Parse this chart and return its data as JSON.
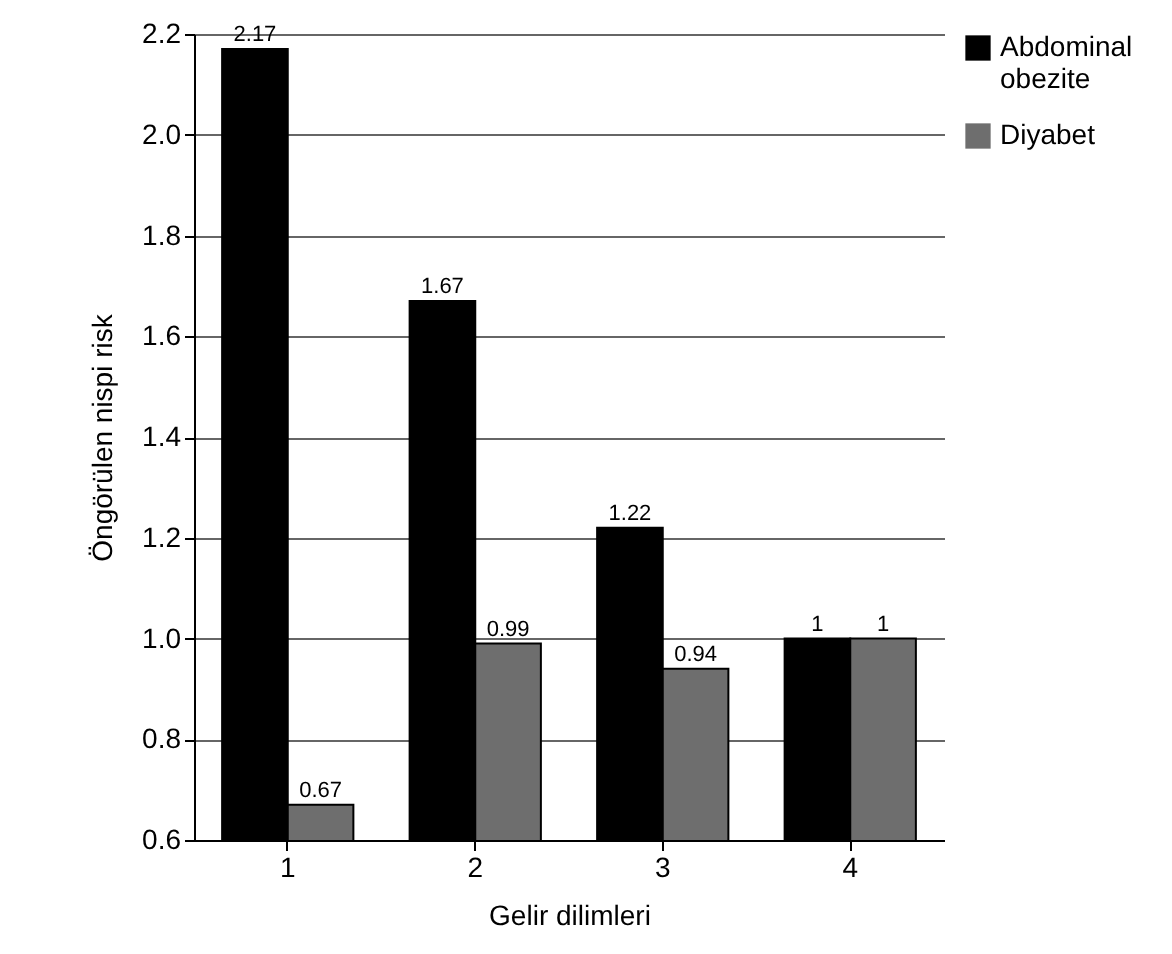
{
  "chart_data": {
    "type": "bar",
    "xlabel": "Gelir dilimleri",
    "ylabel": "Öngörülen nispi risk",
    "categories": [
      "1",
      "2",
      "3",
      "4"
    ],
    "series": [
      {
        "name": "Abdominal obezite",
        "color": "#000000",
        "values": [
          2.17,
          1.67,
          1.22,
          1
        ],
        "value_labels": [
          "2.17",
          "1.67",
          "1.22",
          "1"
        ]
      },
      {
        "name": "Diyabet",
        "color": "#6e6e6e",
        "values": [
          0.67,
          0.99,
          0.94,
          1
        ],
        "value_labels": [
          "0.67",
          "0.99",
          "0.94",
          "1"
        ]
      }
    ],
    "ylim": [
      0.6,
      2.2
    ],
    "yticks": [
      {
        "value": 0.6,
        "label": "0.6"
      },
      {
        "value": 0.8,
        "label": "0.8"
      },
      {
        "value": 1,
        "label": "1.0"
      },
      {
        "value": 1.2,
        "label": "1.2"
      },
      {
        "value": 1.4,
        "label": "1.4"
      },
      {
        "value": 1.6,
        "label": "1.6"
      },
      {
        "value": 1.8,
        "label": "1.8"
      },
      {
        "value": 2,
        "label": "2.0"
      },
      {
        "value": 2.2,
        "label": "2.2"
      }
    ],
    "grid": "y",
    "legend": "top right",
    "data_labels": true
  }
}
